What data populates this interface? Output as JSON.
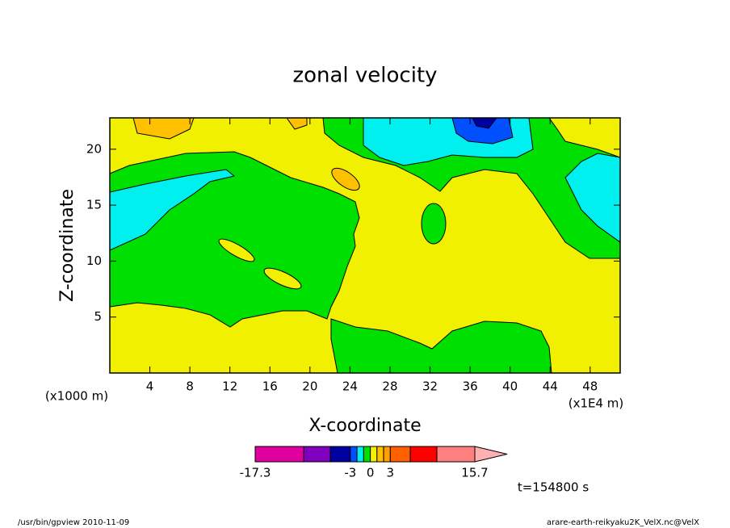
{
  "chart_data": {
    "type": "contour",
    "title": "zonal velocity",
    "x_label": "X-coordinate",
    "y_label": "Z-coordinate",
    "x_unit": "(x1E4 m)",
    "y_unit": "(x1000 m)",
    "xlim": [
      0,
      51
    ],
    "ylim": [
      0,
      22.8
    ],
    "xticks": [
      4,
      8,
      12,
      16,
      20,
      24,
      28,
      32,
      36,
      40,
      44,
      48
    ],
    "yticks": [
      5,
      10,
      15,
      20
    ],
    "colorbar": {
      "levels": [
        -17.3,
        -10,
        -6,
        -3,
        -2,
        -1,
        0,
        1,
        2,
        3,
        6,
        10,
        15.7
      ],
      "colors": [
        "#e000a0",
        "#8000c0",
        "#0000a0",
        "#0050ff",
        "#00f0f0",
        "#00e000",
        "#f0f000",
        "#ffc000",
        "#ffa000",
        "#ff6000",
        "#ff0000",
        "#ff8080"
      ],
      "over_color": "#ffb0b0",
      "ticks": [
        -17.3,
        -3,
        0,
        3,
        15.7
      ]
    },
    "time_label": "t=154800 s",
    "footer_left": "/usr/bin/gpview  2010-11-09",
    "footer_right": "arare-earth-reikyaku2K_VelX.nc@VelX"
  }
}
